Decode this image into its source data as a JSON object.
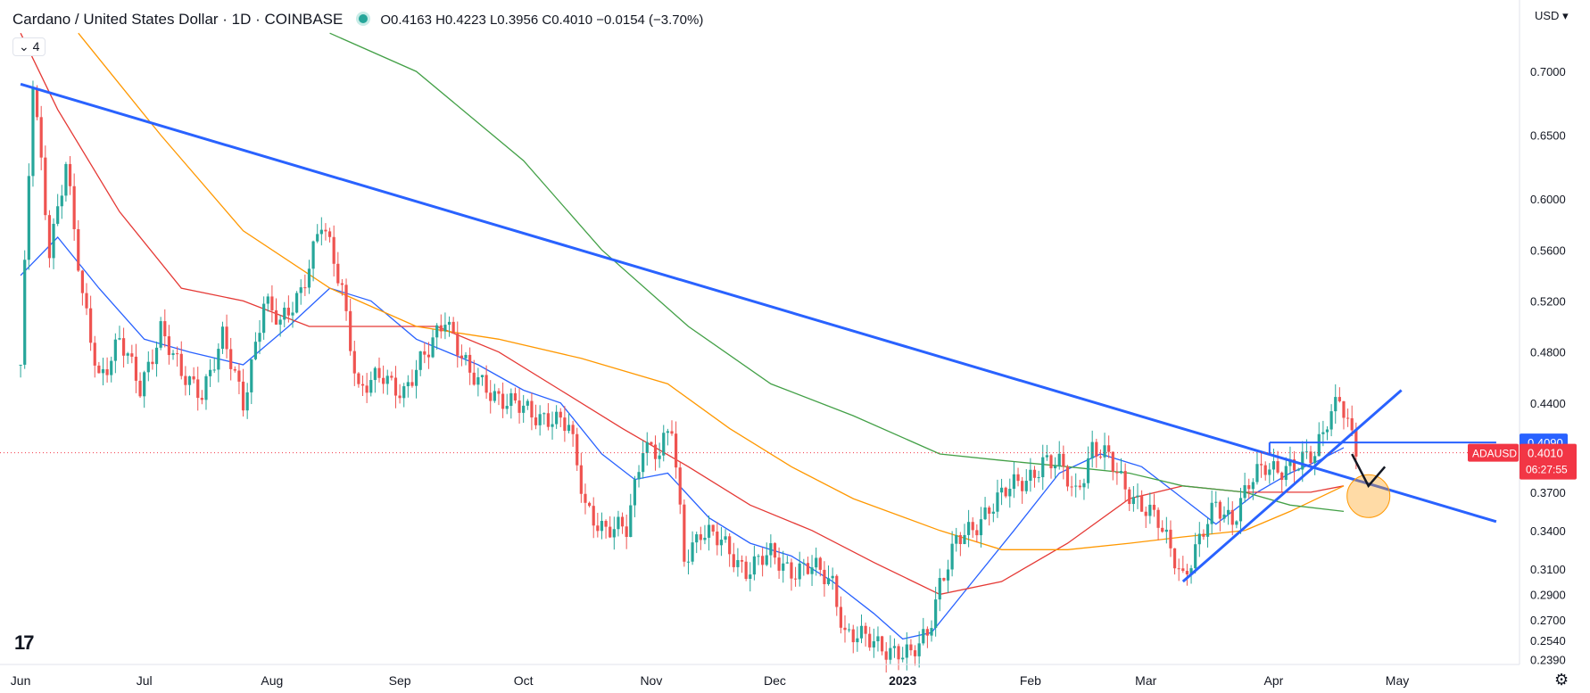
{
  "header": {
    "title": "Cardano / United States Dollar · 1D · COINBASE",
    "ohlc": "O0.4163 H0.4223 L0.3956 C0.4010 −0.0154 (−3.70%)",
    "collapse_label": "4",
    "currency": "USD"
  },
  "colors": {
    "bull": "#26a69a",
    "bear": "#ef5350",
    "trend": "#2962ff",
    "ma_blue": "#2962ff",
    "ma_red": "#e53935",
    "ma_orange": "#ff9800",
    "ma_green": "#43a047",
    "price_label": "#f23645",
    "level_label": "#2962ff"
  },
  "icons": {
    "logo": "tradingview-logo-icon",
    "settings": "gear-icon"
  },
  "chart_data": {
    "type": "candlestick",
    "x_ticks": [
      "Jun",
      "Jul",
      "Aug",
      "Sep",
      "Oct",
      "Nov",
      "Dec",
      "2023",
      "Feb",
      "Mar",
      "Apr",
      "May"
    ],
    "y_ticks": [
      "0.7000",
      "0.6500",
      "0.6000",
      "0.5600",
      "0.5200",
      "0.4800",
      "0.4400",
      "0.3700",
      "0.3400",
      "0.3100",
      "0.2900",
      "0.2700",
      "0.2540",
      "0.2390"
    ],
    "last_price": {
      "symbol": "ADAUSD",
      "value": "0.4010",
      "countdown": "06:27:55"
    },
    "level_label": "0.4090",
    "ylim": [
      0.235,
      0.735
    ],
    "series": [
      {
        "kind": "ma",
        "color_key": "ma_blue",
        "points": [
          [
            "2022-06-01",
            0.54
          ],
          [
            "2022-06-10",
            0.57
          ],
          [
            "2022-06-20",
            0.53
          ],
          [
            "2022-07-01",
            0.49
          ],
          [
            "2022-07-12",
            0.48
          ],
          [
            "2022-07-25",
            0.47
          ],
          [
            "2022-08-05",
            0.5
          ],
          [
            "2022-08-15",
            0.53
          ],
          [
            "2022-08-25",
            0.52
          ],
          [
            "2022-09-05",
            0.49
          ],
          [
            "2022-09-20",
            0.47
          ],
          [
            "2022-10-01",
            0.45
          ],
          [
            "2022-10-10",
            0.44
          ],
          [
            "2022-10-20",
            0.4
          ],
          [
            "2022-10-28",
            0.38
          ],
          [
            "2022-11-05",
            0.385
          ],
          [
            "2022-11-15",
            0.35
          ],
          [
            "2022-11-25",
            0.33
          ],
          [
            "2022-12-05",
            0.32
          ],
          [
            "2022-12-15",
            0.3
          ],
          [
            "2022-12-25",
            0.275
          ],
          [
            "2023-01-01",
            0.255
          ],
          [
            "2023-01-08",
            0.26
          ],
          [
            "2023-01-18",
            0.3
          ],
          [
            "2023-01-28",
            0.34
          ],
          [
            "2023-02-08",
            0.385
          ],
          [
            "2023-02-18",
            0.4
          ],
          [
            "2023-02-28",
            0.39
          ],
          [
            "2023-03-08",
            0.37
          ],
          [
            "2023-03-18",
            0.345
          ],
          [
            "2023-03-28",
            0.37
          ],
          [
            "2023-04-05",
            0.385
          ],
          [
            "2023-04-12",
            0.395
          ],
          [
            "2023-04-18",
            0.405
          ]
        ]
      },
      {
        "kind": "ma",
        "color_key": "ma_red",
        "points": [
          [
            "2022-06-01",
            0.73
          ],
          [
            "2022-06-10",
            0.67
          ],
          [
            "2022-06-25",
            0.59
          ],
          [
            "2022-07-10",
            0.53
          ],
          [
            "2022-07-25",
            0.52
          ],
          [
            "2022-08-10",
            0.5
          ],
          [
            "2022-08-25",
            0.5
          ],
          [
            "2022-09-10",
            0.5
          ],
          [
            "2022-09-25",
            0.48
          ],
          [
            "2022-10-10",
            0.45
          ],
          [
            "2022-10-25",
            0.42
          ],
          [
            "2022-11-10",
            0.39
          ],
          [
            "2022-11-25",
            0.36
          ],
          [
            "2022-12-10",
            0.34
          ],
          [
            "2022-12-25",
            0.315
          ],
          [
            "2023-01-10",
            0.29
          ],
          [
            "2023-01-25",
            0.3
          ],
          [
            "2023-02-10",
            0.33
          ],
          [
            "2023-02-25",
            0.365
          ],
          [
            "2023-03-10",
            0.375
          ],
          [
            "2023-03-25",
            0.37
          ],
          [
            "2023-04-10",
            0.37
          ],
          [
            "2023-04-18",
            0.375
          ]
        ]
      },
      {
        "kind": "ma",
        "color_key": "ma_orange",
        "points": [
          [
            "2022-06-15",
            0.73
          ],
          [
            "2022-07-05",
            0.65
          ],
          [
            "2022-07-25",
            0.575
          ],
          [
            "2022-08-15",
            0.53
          ],
          [
            "2022-09-05",
            0.5
          ],
          [
            "2022-09-25",
            0.49
          ],
          [
            "2022-10-15",
            0.475
          ],
          [
            "2022-11-05",
            0.455
          ],
          [
            "2022-11-20",
            0.42
          ],
          [
            "2022-12-05",
            0.39
          ],
          [
            "2022-12-20",
            0.365
          ],
          [
            "2023-01-10",
            0.34
          ],
          [
            "2023-01-25",
            0.325
          ],
          [
            "2023-02-10",
            0.325
          ],
          [
            "2023-02-25",
            0.33
          ],
          [
            "2023-03-10",
            0.335
          ],
          [
            "2023-03-25",
            0.34
          ],
          [
            "2023-04-05",
            0.355
          ],
          [
            "2023-04-18",
            0.375
          ]
        ]
      },
      {
        "kind": "ma",
        "color_key": "ma_green",
        "points": [
          [
            "2022-08-15",
            0.73
          ],
          [
            "2022-09-05",
            0.7
          ],
          [
            "2022-10-01",
            0.63
          ],
          [
            "2022-10-20",
            0.56
          ],
          [
            "2022-11-10",
            0.5
          ],
          [
            "2022-11-30",
            0.455
          ],
          [
            "2022-12-20",
            0.43
          ],
          [
            "2023-01-10",
            0.4
          ],
          [
            "2023-01-25",
            0.395
          ],
          [
            "2023-02-10",
            0.39
          ],
          [
            "2023-02-25",
            0.385
          ],
          [
            "2023-03-10",
            0.375
          ],
          [
            "2023-03-25",
            0.37
          ],
          [
            "2023-04-05",
            0.36
          ],
          [
            "2023-04-18",
            0.355
          ]
        ]
      }
    ],
    "price_path": [
      [
        "2022-06-01",
        0.47
      ],
      [
        "2022-06-04",
        0.69
      ],
      [
        "2022-06-08",
        0.56
      ],
      [
        "2022-06-12",
        0.63
      ],
      [
        "2022-06-16",
        0.52
      ],
      [
        "2022-06-20",
        0.46
      ],
      [
        "2022-06-25",
        0.49
      ],
      [
        "2022-06-30",
        0.45
      ],
      [
        "2022-07-05",
        0.5
      ],
      [
        "2022-07-10",
        0.46
      ],
      [
        "2022-07-15",
        0.45
      ],
      [
        "2022-07-20",
        0.49
      ],
      [
        "2022-07-25",
        0.44
      ],
      [
        "2022-07-30",
        0.52
      ],
      [
        "2022-08-03",
        0.5
      ],
      [
        "2022-08-08",
        0.53
      ],
      [
        "2022-08-13",
        0.58
      ],
      [
        "2022-08-18",
        0.53
      ],
      [
        "2022-08-22",
        0.45
      ],
      [
        "2022-08-28",
        0.46
      ],
      [
        "2022-09-02",
        0.45
      ],
      [
        "2022-09-08",
        0.48
      ],
      [
        "2022-09-12",
        0.51
      ],
      [
        "2022-09-18",
        0.46
      ],
      [
        "2022-09-23",
        0.45
      ],
      [
        "2022-09-28",
        0.44
      ],
      [
        "2022-10-03",
        0.43
      ],
      [
        "2022-10-08",
        0.43
      ],
      [
        "2022-10-12",
        0.42
      ],
      [
        "2022-10-16",
        0.36
      ],
      [
        "2022-10-21",
        0.34
      ],
      [
        "2022-10-26",
        0.34
      ],
      [
        "2022-10-30",
        0.41
      ],
      [
        "2022-11-03",
        0.4
      ],
      [
        "2022-11-06",
        0.42
      ],
      [
        "2022-11-09",
        0.32
      ],
      [
        "2022-11-13",
        0.34
      ],
      [
        "2022-11-18",
        0.33
      ],
      [
        "2022-11-24",
        0.31
      ],
      [
        "2022-11-30",
        0.32
      ],
      [
        "2022-12-05",
        0.31
      ],
      [
        "2022-12-10",
        0.31
      ],
      [
        "2022-12-15",
        0.3
      ],
      [
        "2022-12-18",
        0.26
      ],
      [
        "2022-12-22",
        0.255
      ],
      [
        "2022-12-27",
        0.25
      ],
      [
        "2022-12-31",
        0.245
      ],
      [
        "2023-01-03",
        0.24
      ],
      [
        "2023-01-07",
        0.26
      ],
      [
        "2023-01-10",
        0.3
      ],
      [
        "2023-01-14",
        0.33
      ],
      [
        "2023-01-18",
        0.34
      ],
      [
        "2023-01-22",
        0.36
      ],
      [
        "2023-01-26",
        0.37
      ],
      [
        "2023-01-31",
        0.38
      ],
      [
        "2023-02-04",
        0.395
      ],
      [
        "2023-02-08",
        0.39
      ],
      [
        "2023-02-12",
        0.37
      ],
      [
        "2023-02-16",
        0.405
      ],
      [
        "2023-02-20",
        0.395
      ],
      [
        "2023-02-24",
        0.375
      ],
      [
        "2023-02-28",
        0.36
      ],
      [
        "2023-03-04",
        0.345
      ],
      [
        "2023-03-08",
        0.32
      ],
      [
        "2023-03-10",
        0.305
      ],
      [
        "2023-03-14",
        0.33
      ],
      [
        "2023-03-18",
        0.36
      ],
      [
        "2023-03-22",
        0.35
      ],
      [
        "2023-03-26",
        0.375
      ],
      [
        "2023-03-30",
        0.39
      ],
      [
        "2023-04-03",
        0.39
      ],
      [
        "2023-04-07",
        0.39
      ],
      [
        "2023-04-11",
        0.4
      ],
      [
        "2023-04-14",
        0.43
      ],
      [
        "2023-04-17",
        0.445
      ],
      [
        "2023-04-19",
        0.42
      ],
      [
        "2023-04-21",
        0.401
      ]
    ],
    "annotations": {
      "trendlines": [
        {
          "from": [
            "2022-06-01",
            0.69
          ],
          "to": [
            "2023-05-25",
            0.347
          ]
        },
        {
          "from": [
            "2023-03-10",
            0.3
          ],
          "to": [
            "2023-05-02",
            0.45
          ]
        }
      ],
      "horizontal": {
        "y": 0.409,
        "from": "2023-03-31",
        "to": "2023-05-25"
      },
      "arrow": {
        "from": [
          "2023-04-20",
          0.4
        ],
        "mid": [
          "2023-04-24",
          0.375
        ],
        "to": [
          "2023-04-28",
          0.39
        ]
      },
      "circle": {
        "center": [
          "2023-04-24",
          0.367
        ]
      }
    }
  }
}
